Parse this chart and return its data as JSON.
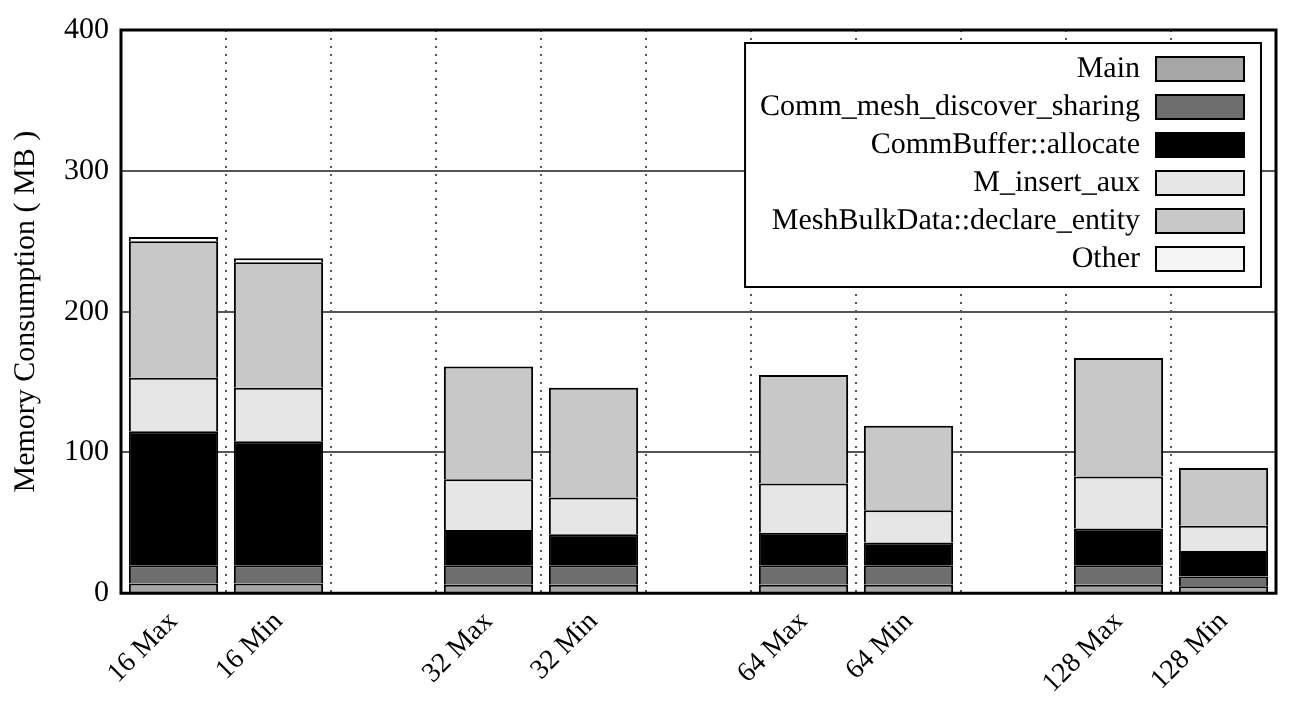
{
  "chart_data": {
    "type": "bar",
    "stacked": true,
    "ylabel": "Memory Consumption ( MB )",
    "categories": [
      "16 Max",
      "16 Min",
      null,
      "32 Max",
      "32 Min",
      null,
      "64 Max",
      "64 Min",
      null,
      "128 Max",
      "128 Min"
    ],
    "series": [
      {
        "name": "Main",
        "color": "#a6a6a6",
        "values": [
          7,
          7,
          null,
          6,
          6,
          null,
          6,
          6,
          null,
          6,
          5
        ]
      },
      {
        "name": "Comm_mesh_discover_sharing",
        "color": "#6e6e6e",
        "values": [
          13,
          13,
          null,
          14,
          14,
          null,
          14,
          14,
          null,
          14,
          7
        ]
      },
      {
        "name": "CommBuffer::allocate",
        "color": "#000000",
        "values": [
          95,
          88,
          null,
          25,
          22,
          null,
          23,
          16,
          null,
          26,
          18
        ]
      },
      {
        "name": "M_insert_aux",
        "color": "#e6e6e6",
        "values": [
          38,
          38,
          null,
          36,
          26,
          null,
          35,
          23,
          null,
          37,
          18
        ]
      },
      {
        "name": "MeshBulkData::declare_entity",
        "color": "#c8c8c8",
        "values": [
          97,
          89,
          null,
          80,
          78,
          null,
          77,
          60,
          null,
          84,
          41
        ]
      },
      {
        "name": "Other",
        "color": "#f5f5f5",
        "values": [
          3,
          3,
          null,
          null,
          null,
          null,
          null,
          null,
          null,
          null,
          null
        ]
      }
    ],
    "ylim": [
      0,
      400
    ],
    "yticks": [
      0,
      100,
      200,
      300,
      400
    ],
    "grid": true,
    "legend": "top right"
  }
}
